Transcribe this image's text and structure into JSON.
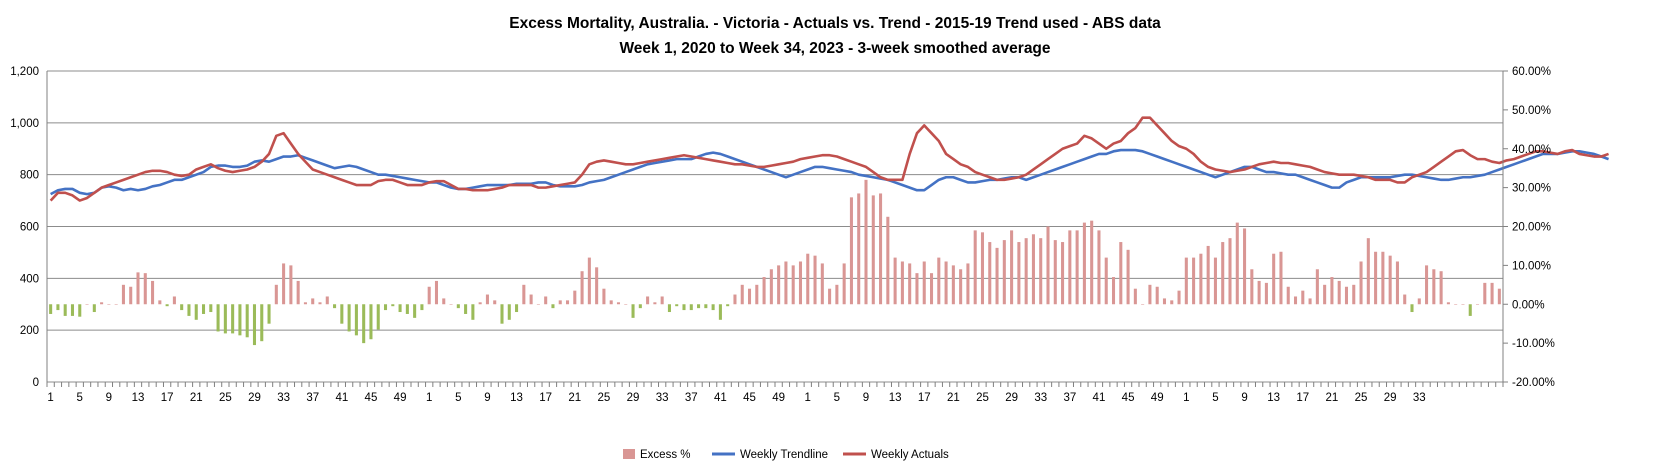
{
  "chart_data": {
    "type": "bar+line",
    "title": "Excess Mortality, Australia. - Victoria - Actuals vs. Trend - 2015-19 Trend used - ABS data",
    "subtitle": "Week 1, 2020 to Week 34, 2023 - 3-week smoothed average",
    "y_left": {
      "min": 0,
      "max": 1200,
      "step": 200,
      "ticks": [
        "0",
        "200",
        "400",
        "600",
        "800",
        "1,000",
        "1,200"
      ]
    },
    "y_right": {
      "min": -20,
      "max": 60,
      "step": 10,
      "ticks": [
        "-20.00%",
        "-10.00%",
        "0.00%",
        "10.00%",
        "20.00%",
        "30.00%",
        "40.00%",
        "50.00%",
        "60.00%"
      ]
    },
    "grid": true,
    "x_tick_labels": [
      "1",
      "5",
      "9",
      "13",
      "17",
      "21",
      "25",
      "29",
      "33",
      "37",
      "41",
      "45",
      "49",
      "1",
      "5",
      "9",
      "13",
      "17",
      "21",
      "25",
      "29",
      "33",
      "37",
      "41",
      "45",
      "49",
      "1",
      "5",
      "9",
      "13",
      "17",
      "21",
      "25",
      "29",
      "33",
      "37",
      "41",
      "45",
      "49",
      "1",
      "5",
      "9",
      "13",
      "17",
      "21",
      "25",
      "29",
      "33"
    ],
    "legend_position": "bottom",
    "colors": {
      "excess_pos": "#d99694",
      "excess_neg": "#9bbb59",
      "trend": "#4472c4",
      "actual": "#c0504d"
    },
    "series": [
      {
        "name": "Excess %",
        "type": "bar",
        "axis": "right",
        "values": [
          -2.5,
          -1.5,
          -3.0,
          -3.0,
          -3.2,
          0.0,
          -2.0,
          0.5,
          0.0,
          0.0,
          5.0,
          4.5,
          8.2,
          8.0,
          6.0,
          1.0,
          -0.5,
          2.0,
          -1.5,
          -3.0,
          -4.0,
          -2.5,
          -2.0,
          -7.0,
          -7.5,
          -7.5,
          -8.0,
          -8.5,
          -10.5,
          -9.5,
          -5.0,
          5.0,
          10.5,
          10.0,
          6.0,
          0.5,
          1.5,
          0.5,
          2.0,
          -1.0,
          -5.0,
          -7.0,
          -8.0,
          -10.0,
          -9.0,
          -6.5,
          -1.5,
          -0.5,
          -2.0,
          -2.5,
          -3.5,
          -1.5,
          4.5,
          6.0,
          1.5,
          0.0,
          -1.0,
          -2.5,
          -4.0,
          0.5,
          2.5,
          1.0,
          -5.0,
          -4.0,
          -2.0,
          5.0,
          2.5,
          0.0,
          2.0,
          -1.0,
          1.0,
          1.0,
          3.5,
          8.5,
          12.0,
          9.5,
          4.0,
          1.0,
          0.5,
          0.0,
          -3.5,
          -1.0,
          2.0,
          0.5,
          2.0,
          -2.0,
          -0.5,
          -1.5,
          -1.5,
          -1.0,
          -1.0,
          -1.5,
          -4.0,
          -0.5,
          2.5,
          5.0,
          4.0,
          5.0,
          7.0,
          9.0,
          10.0,
          11.0,
          10.0,
          11.0,
          13.0,
          12.5,
          10.5,
          4.0,
          5.0,
          10.5,
          27.5,
          28.5,
          32.0,
          28.0,
          28.5,
          22.5,
          12.0,
          11.0,
          10.5,
          8.0,
          11.0,
          8.0,
          12.0,
          11.0,
          10.0,
          9.0,
          10.5,
          19.0,
          18.5,
          16.0,
          14.5,
          16.5,
          19.0,
          16.0,
          17.0,
          18.0,
          17.0,
          20.0,
          16.5,
          16.0,
          19.0,
          19.0,
          21.0,
          21.5,
          19.0,
          12.0,
          7.0,
          16.0,
          14.0,
          4.0,
          0.0,
          5.0,
          4.5,
          1.5,
          1.0,
          3.5,
          12.0,
          12.0,
          13.0,
          15.0,
          12.0,
          16.0,
          17.0,
          21.0,
          19.5,
          9.0,
          6.0,
          5.5,
          13.0,
          13.5,
          4.5,
          2.0,
          3.5,
          1.5,
          9.0,
          5.0,
          7.0,
          6.0,
          4.5,
          5.0,
          11.0,
          17.0,
          13.5,
          13.5,
          12.5,
          11.0,
          2.5,
          -2.0,
          1.5,
          10.0,
          9.0,
          8.5,
          0.5,
          0.0,
          0.0,
          -3.0,
          0.0,
          5.5,
          5.5,
          4.0
        ]
      },
      {
        "name": "Weekly Trendline",
        "type": "line",
        "axis": "left",
        "values": [
          725,
          740,
          745,
          745,
          730,
          725,
          730,
          750,
          755,
          750,
          740,
          745,
          740,
          745,
          755,
          760,
          770,
          780,
          780,
          790,
          800,
          810,
          830,
          835,
          835,
          830,
          830,
          835,
          850,
          855,
          850,
          860,
          870,
          870,
          875,
          865,
          855,
          845,
          835,
          825,
          830,
          835,
          830,
          820,
          810,
          800,
          800,
          795,
          790,
          785,
          780,
          775,
          770,
          770,
          760,
          750,
          745,
          745,
          750,
          755,
          760,
          760,
          760,
          760,
          765,
          765,
          765,
          770,
          770,
          760,
          755,
          755,
          755,
          760,
          770,
          775,
          780,
          790,
          800,
          810,
          820,
          830,
          840,
          845,
          850,
          855,
          860,
          860,
          860,
          870,
          880,
          885,
          880,
          870,
          860,
          850,
          840,
          830,
          820,
          810,
          800,
          790,
          800,
          810,
          820,
          830,
          830,
          825,
          820,
          815,
          810,
          800,
          795,
          790,
          785,
          780,
          770,
          760,
          750,
          740,
          740,
          760,
          780,
          790,
          790,
          780,
          770,
          770,
          775,
          780,
          780,
          785,
          790,
          790,
          780,
          790,
          800,
          810,
          820,
          830,
          840,
          850,
          860,
          870,
          880,
          880,
          890,
          895,
          895,
          895,
          890,
          880,
          870,
          860,
          850,
          840,
          830,
          820,
          810,
          800,
          790,
          800,
          810,
          820,
          830,
          830,
          820,
          810,
          810,
          805,
          800,
          800,
          790,
          780,
          770,
          760,
          750,
          750,
          770,
          780,
          790,
          790,
          790,
          790,
          790,
          795,
          800,
          800,
          795,
          790,
          785,
          780,
          780,
          785,
          790,
          790,
          795,
          800,
          810,
          820,
          830,
          840,
          850,
          860,
          870,
          880,
          880,
          880,
          885,
          890,
          890,
          885,
          880,
          870,
          860
        ]
      },
      {
        "name": "Weekly Actuals",
        "type": "line",
        "axis": "left",
        "values": [
          700,
          730,
          730,
          720,
          700,
          710,
          730,
          750,
          760,
          770,
          780,
          790,
          800,
          810,
          815,
          815,
          810,
          800,
          795,
          800,
          820,
          830,
          840,
          825,
          815,
          810,
          815,
          820,
          830,
          850,
          880,
          950,
          960,
          920,
          880,
          850,
          820,
          810,
          800,
          790,
          780,
          770,
          760,
          760,
          760,
          775,
          780,
          780,
          770,
          760,
          760,
          760,
          770,
          775,
          775,
          760,
          745,
          745,
          740,
          740,
          740,
          745,
          750,
          760,
          760,
          760,
          760,
          750,
          750,
          755,
          760,
          765,
          770,
          800,
          840,
          850,
          855,
          850,
          845,
          840,
          840,
          845,
          850,
          855,
          860,
          865,
          870,
          875,
          870,
          865,
          860,
          855,
          850,
          845,
          840,
          840,
          835,
          830,
          830,
          835,
          840,
          845,
          850,
          860,
          865,
          870,
          875,
          875,
          870,
          860,
          850,
          840,
          830,
          810,
          790,
          780,
          780,
          780,
          880,
          960,
          990,
          960,
          930,
          880,
          860,
          840,
          830,
          810,
          800,
          790,
          780,
          780,
          785,
          790,
          800,
          820,
          840,
          860,
          880,
          900,
          910,
          920,
          950,
          940,
          920,
          900,
          920,
          930,
          960,
          980,
          1020,
          1020,
          990,
          960,
          930,
          910,
          900,
          880,
          850,
          830,
          820,
          815,
          810,
          815,
          820,
          830,
          840,
          845,
          850,
          845,
          845,
          840,
          835,
          830,
          820,
          810,
          805,
          800,
          800,
          800,
          795,
          790,
          780,
          780,
          780,
          770,
          770,
          790,
          800,
          810,
          830,
          850,
          870,
          890,
          895,
          875,
          860,
          860,
          850,
          845,
          855,
          860,
          870,
          880,
          890,
          890,
          885,
          880,
          890,
          895,
          880,
          875,
          870,
          870,
          880
        ]
      }
    ]
  }
}
